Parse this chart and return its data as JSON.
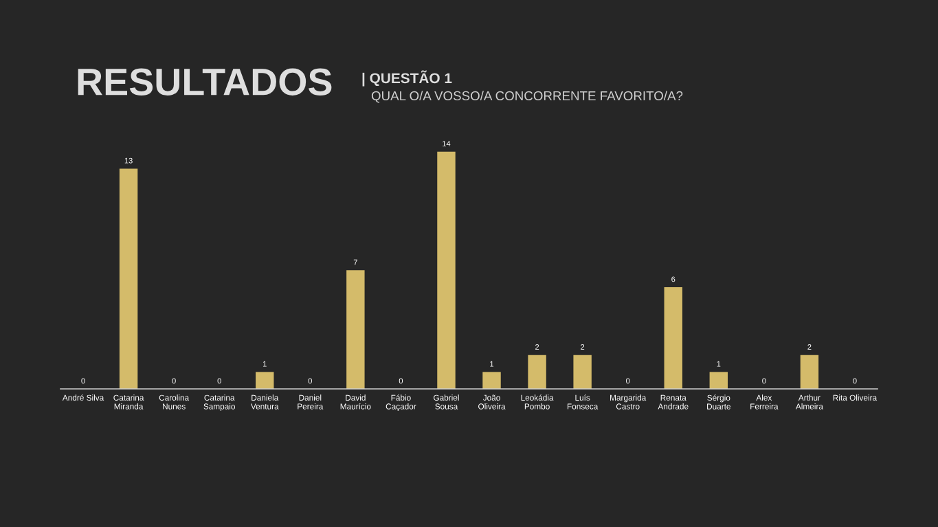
{
  "chart_data": {
    "type": "bar",
    "title": "RESULTADOS",
    "subtitle": "| QUESTÃO 1",
    "annotations": [
      "QUAL O/A VOSSO/A CONCORRENTE FAVORITO/A?"
    ],
    "categories": [
      "André Silva",
      "Catarina\nMiranda",
      "Carolina\nNunes",
      "Catarina\nSampaio",
      "Daniela\nVentura",
      "Daniel\nPereira",
      "David\nMaurício",
      "Fábio\nCaçador",
      "Gabriel\nSousa",
      "João\nOliveira",
      "Leokádia\nPombo",
      "Luís\nFonseca",
      "Margarida\nCastro",
      "Renata\nAndrade",
      "Sérgio\nDuarte",
      "Alex\nFerreira",
      "Arthur\nAlmeira",
      "Rita Oliveira"
    ],
    "values": [
      0,
      13,
      0,
      0,
      1,
      0,
      7,
      0,
      14,
      1,
      2,
      2,
      0,
      6,
      1,
      0,
      2,
      0
    ],
    "color": "#d4bb6a",
    "data_labels": true,
    "grid": false,
    "legend": false
  }
}
